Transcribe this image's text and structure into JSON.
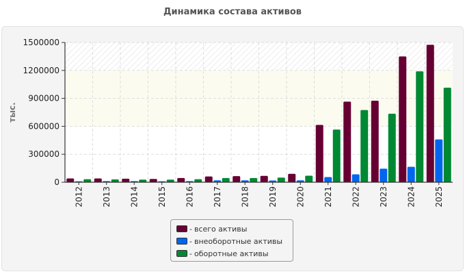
{
  "chart_data": {
    "type": "bar",
    "title": "Динамика состава активов",
    "ylabel": "тыс.",
    "xlabel": "",
    "categories": [
      "2012",
      "2013",
      "2014",
      "2015",
      "2016",
      "2017",
      "2018",
      "2019",
      "2020",
      "2021",
      "2022",
      "2023",
      "2024",
      "2025"
    ],
    "series": [
      {
        "name": "всего активы",
        "color": "#660033",
        "values": [
          40000,
          40000,
          38000,
          35000,
          45000,
          62000,
          65000,
          68000,
          90000,
          615000,
          865000,
          875000,
          1350000,
          1475000
        ]
      },
      {
        "name": "внеоборотные активы",
        "color": "#0066ee",
        "values": [
          10000,
          12000,
          12000,
          10000,
          12000,
          20000,
          20000,
          18000,
          20000,
          55000,
          85000,
          145000,
          165000,
          460000
        ]
      },
      {
        "name": "оборотные активы",
        "color": "#008833",
        "values": [
          32000,
          30000,
          28000,
          28000,
          32000,
          45000,
          45000,
          50000,
          70000,
          565000,
          775000,
          735000,
          1190000,
          1015000
        ]
      }
    ],
    "yticks": [
      "0",
      "300000",
      "600000",
      "900000",
      "1200000",
      "1500000"
    ],
    "ylim": [
      0,
      1500000
    ],
    "grid": true,
    "legend_position": "bottom-center",
    "legend_prefix": "-"
  }
}
